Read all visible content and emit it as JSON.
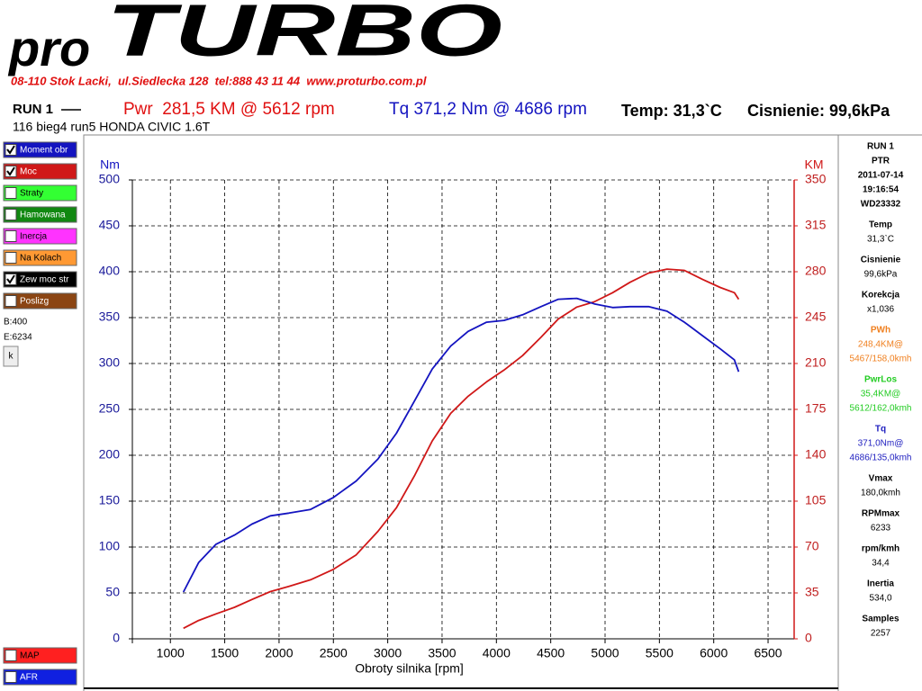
{
  "header": {
    "logo_pro": "pro",
    "logo_turbo": "TURBO",
    "address": "08-110 Stok Lacki,  ul.Siedlecka 128  tel:888 43 11 44  www.proturbo.com.pl",
    "run": "RUN 1",
    "power": "Pwr  281,5 KM @ 5612 rpm",
    "torque": "Tq 371,2 Nm @ 4686 rpm",
    "temp": "Temp: 31,3`C",
    "pressure": "Cisnienie: 99,6kPa",
    "subtitle": "116 bieg4 run5 HONDA CIVIC 1.6T"
  },
  "sidebar": {
    "channels": [
      {
        "label": "Straty",
        "color": "#33ff33",
        "checked": false
      },
      {
        "label": "Hamowana",
        "color": "#118811",
        "checked": false
      },
      {
        "label": "Inercja",
        "color": "#ff33ff",
        "checked": false
      },
      {
        "label": "Na Kolach",
        "color": "#ff9933",
        "checked": false
      },
      {
        "label": "Zew moc str",
        "color": "#000000",
        "checked": true
      },
      {
        "label": "Poslizg",
        "color": "#8b4513",
        "checked": false
      }
    ],
    "begin": "B:400",
    "end": "E:6234",
    "button": "k",
    "extra_channels": [
      {
        "label": "MAP",
        "color": "#ff2020",
        "checked": false
      },
      {
        "label": "AFR",
        "color": "#1020e0",
        "checked": false
      }
    ]
  },
  "info_panel": {
    "blocks": [
      {
        "lines": [
          "RUN 1",
          "PTR",
          "2011-07-14",
          "19:16:54",
          "WD23332"
        ]
      },
      {
        "lines": [
          "Temp",
          "31,3`C"
        ]
      },
      {
        "lines": [
          "Cisnienie",
          "99,6kPa"
        ]
      },
      {
        "lines": [
          "Korekcja",
          "x1,036"
        ]
      },
      {
        "lines": [
          "PWh",
          "248,4KM@",
          "5467/158,0kmh"
        ],
        "color": "#f08020"
      },
      {
        "lines": [
          "PwrLos",
          "35,4KM@",
          "5612/162,0kmh"
        ],
        "color": "#22cc22"
      },
      {
        "lines": [
          "Tq",
          "371,0Nm@",
          "4686/135,0kmh"
        ],
        "color": "#2020c0"
      },
      {
        "lines": [
          "Vmax",
          "180,0kmh"
        ]
      },
      {
        "lines": [
          "RPMmax",
          "6233"
        ]
      },
      {
        "lines": [
          "rpm/kmh",
          "34,4"
        ]
      },
      {
        "lines": [
          "Inertia",
          "534,0"
        ]
      },
      {
        "lines": [
          "Samples",
          "2257"
        ]
      }
    ]
  },
  "chart_data": {
    "type": "line",
    "x_label": "Obroty silnika [rpm]",
    "y_label": "Nm",
    "y2_label": "KM",
    "x": [
      1120,
      1260,
      1420,
      1590,
      1750,
      1920,
      2090,
      2290,
      2500,
      2710,
      2910,
      3080,
      3250,
      3410,
      3580,
      3740,
      3910,
      4070,
      4240,
      4410,
      4570,
      4740,
      4900,
      5070,
      5230,
      5400,
      5570,
      5730,
      5900,
      6060,
      6190,
      6230
    ],
    "series": [
      {
        "name": "Moc",
        "color": "#d01818",
        "axis": "y2",
        "checked": true,
        "values": [
          8,
          14,
          19,
          24,
          30,
          36,
          40,
          45,
          53,
          64,
          82,
          100,
          125,
          151,
          172,
          185,
          196,
          205,
          216,
          230,
          244,
          253,
          257,
          264,
          272,
          279,
          282,
          281,
          274,
          268,
          264,
          259
        ]
      },
      {
        "name": "Moment obr",
        "color": "#1414c0",
        "checked": true,
        "values": [
          51,
          83,
          103,
          113,
          125,
          134,
          137,
          141,
          154,
          172,
          196,
          224,
          260,
          294,
          319,
          335,
          345,
          347,
          353,
          362,
          370,
          371,
          365,
          361,
          362,
          362,
          357,
          345,
          330,
          316,
          304,
          291
        ]
      }
    ],
    "xlim": [
      650,
      6740
    ],
    "xticks": [
      1000,
      1500,
      2000,
      2500,
      3000,
      3500,
      4000,
      4500,
      5000,
      5500,
      6000,
      6500
    ],
    "ylim": [
      0,
      500
    ],
    "yticks": [
      0,
      50,
      100,
      150,
      200,
      250,
      300,
      350,
      400,
      450,
      500
    ],
    "y2lim": [
      0,
      350
    ],
    "y2ticks": [
      0,
      35,
      70,
      105,
      140,
      175,
      210,
      245,
      280,
      315,
      350
    ],
    "grid": true
  }
}
